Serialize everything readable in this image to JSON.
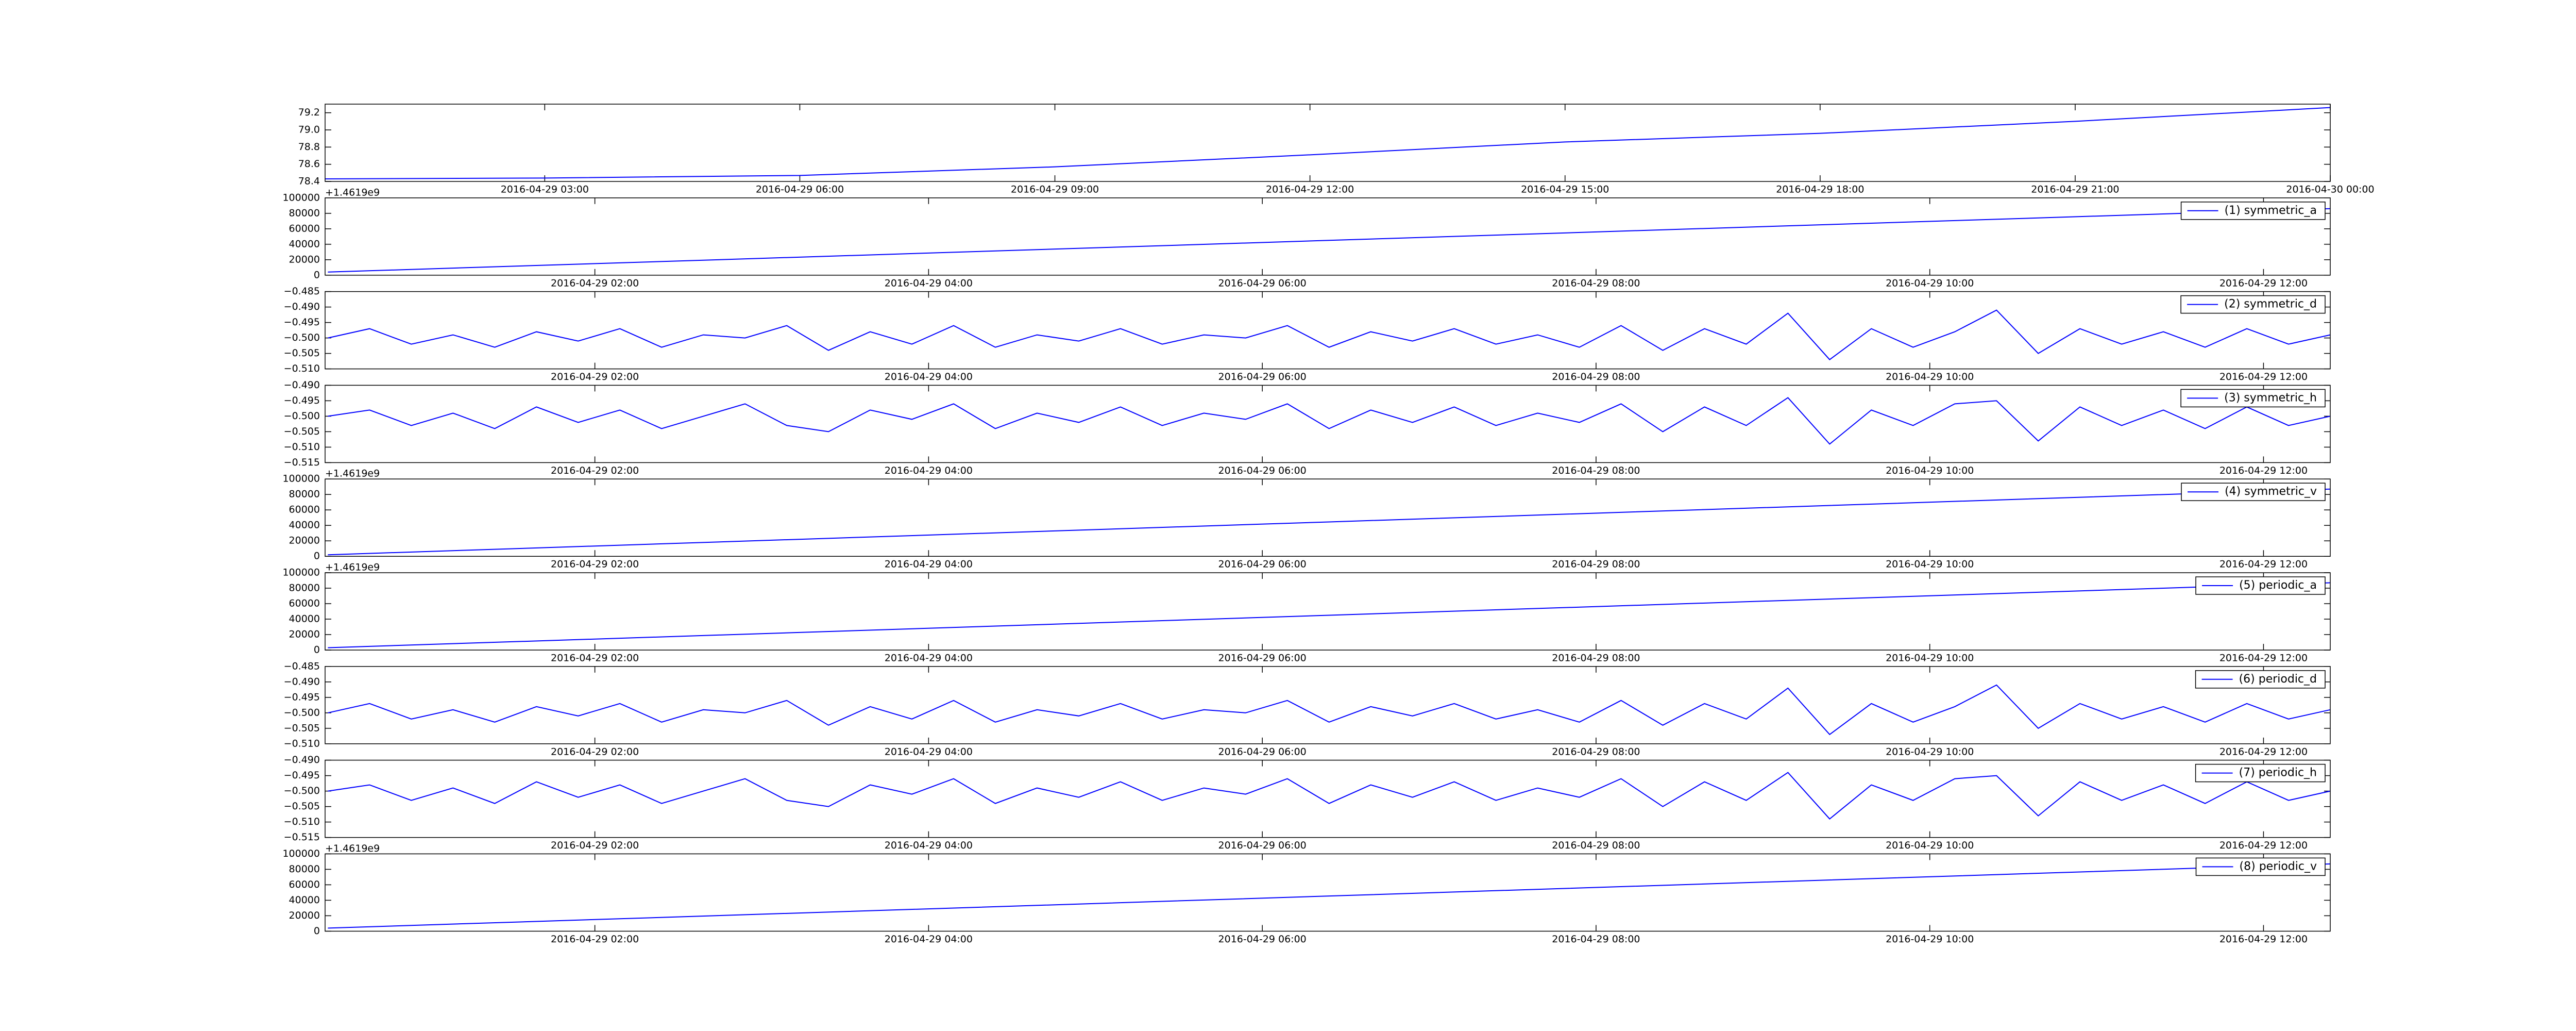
{
  "chart_data": [
    {
      "type": "line",
      "x": [
        "2016-04-29 00:25",
        "2016-04-29 03:00",
        "2016-04-29 06:00",
        "2016-04-29 09:00",
        "2016-04-29 12:00",
        "2016-04-29 15:00",
        "2016-04-29 18:00",
        "2016-04-29 21:00",
        "2016-04-30 00:00"
      ],
      "series": [
        {
          "color": "#0000ff",
          "values": [
            78.43,
            78.44,
            78.47,
            78.57,
            78.71,
            78.86,
            78.96,
            79.1,
            79.26
          ]
        }
      ],
      "xlim": [
        "2016-04-29 00:25",
        "2016-04-30 00:00"
      ],
      "xticks": [
        "2016-04-29 03:00",
        "2016-04-29 06:00",
        "2016-04-29 09:00",
        "2016-04-29 12:00",
        "2016-04-29 15:00",
        "2016-04-29 18:00",
        "2016-04-29 21:00",
        "2016-04-30 00:00"
      ],
      "ylim": [
        78.4,
        79.3
      ],
      "yticks": [
        {
          "value": 78.4,
          "label": "78.4"
        },
        {
          "value": 78.6,
          "label": "78.6"
        },
        {
          "value": 78.8,
          "label": "78.8"
        },
        {
          "value": 79.0,
          "label": "79.0"
        },
        {
          "value": 79.2,
          "label": "79.2"
        }
      ]
    },
    {
      "type": "line",
      "y_offset_label": "+1.4619e9",
      "legend": "upper right",
      "x": [
        "2016-04-29 00:24",
        "2016-04-29 06:24",
        "2016-04-29 12:24"
      ],
      "series": [
        {
          "name": "(1) symmetric_a",
          "color": "#0000ff",
          "values": [
            4000,
            45000,
            86000
          ]
        }
      ],
      "xlim": [
        "2016-04-29 00:23",
        "2016-04-29 12:24"
      ],
      "xticks": [
        "2016-04-29 02:00",
        "2016-04-29 04:00",
        "2016-04-29 06:00",
        "2016-04-29 08:00",
        "2016-04-29 10:00",
        "2016-04-29 12:00"
      ],
      "ylim": [
        0,
        100000
      ],
      "yticks": [
        0,
        20000,
        40000,
        60000,
        80000,
        100000
      ]
    },
    {
      "type": "line",
      "legend": "upper right",
      "x": [
        "2016-04-29 00:24",
        "2016-04-29 00:39",
        "2016-04-29 00:54",
        "2016-04-29 01:09",
        "2016-04-29 01:24",
        "2016-04-29 01:39",
        "2016-04-29 01:54",
        "2016-04-29 02:09",
        "2016-04-29 02:24",
        "2016-04-29 02:39",
        "2016-04-29 02:54",
        "2016-04-29 03:09",
        "2016-04-29 03:24",
        "2016-04-29 03:39",
        "2016-04-29 03:54",
        "2016-04-29 04:09",
        "2016-04-29 04:24",
        "2016-04-29 04:39",
        "2016-04-29 04:54",
        "2016-04-29 05:09",
        "2016-04-29 05:24",
        "2016-04-29 05:39",
        "2016-04-29 05:54",
        "2016-04-29 06:09",
        "2016-04-29 06:24",
        "2016-04-29 06:39",
        "2016-04-29 06:54",
        "2016-04-29 07:09",
        "2016-04-29 07:24",
        "2016-04-29 07:39",
        "2016-04-29 07:54",
        "2016-04-29 08:09",
        "2016-04-29 08:24",
        "2016-04-29 08:39",
        "2016-04-29 08:54",
        "2016-04-29 09:09",
        "2016-04-29 09:24",
        "2016-04-29 09:39",
        "2016-04-29 09:54",
        "2016-04-29 10:09",
        "2016-04-29 10:24",
        "2016-04-29 10:39",
        "2016-04-29 10:54",
        "2016-04-29 11:09",
        "2016-04-29 11:24",
        "2016-04-29 11:39",
        "2016-04-29 11:54",
        "2016-04-29 12:09",
        "2016-04-29 12:24"
      ],
      "series": [
        {
          "name": "(2) symmetric_d",
          "color": "#0000ff",
          "values": [
            -0.5,
            -0.497,
            -0.502,
            -0.499,
            -0.503,
            -0.498,
            -0.501,
            -0.497,
            -0.503,
            -0.499,
            -0.5,
            -0.496,
            -0.504,
            -0.498,
            -0.502,
            -0.496,
            -0.503,
            -0.499,
            -0.501,
            -0.497,
            -0.502,
            -0.499,
            -0.5,
            -0.496,
            -0.503,
            -0.498,
            -0.501,
            -0.497,
            -0.502,
            -0.499,
            -0.503,
            -0.496,
            -0.504,
            -0.497,
            -0.502,
            -0.492,
            -0.507,
            -0.497,
            -0.503,
            -0.498,
            -0.491,
            -0.505,
            -0.497,
            -0.502,
            -0.498,
            -0.503,
            -0.497,
            -0.502,
            -0.499
          ]
        }
      ],
      "xlim": [
        "2016-04-29 00:23",
        "2016-04-29 12:24"
      ],
      "xticks": [
        "2016-04-29 02:00",
        "2016-04-29 04:00",
        "2016-04-29 06:00",
        "2016-04-29 08:00",
        "2016-04-29 10:00",
        "2016-04-29 12:00"
      ],
      "ylim": [
        -0.51,
        -0.485
      ],
      "yticks": [
        {
          "value": -0.51,
          "label": "−0.510"
        },
        {
          "value": -0.505,
          "label": "−0.505"
        },
        {
          "value": -0.5,
          "label": "−0.500"
        },
        {
          "value": -0.495,
          "label": "−0.495"
        },
        {
          "value": -0.49,
          "label": "−0.490"
        },
        {
          "value": -0.485,
          "label": "−0.485"
        }
      ]
    },
    {
      "type": "line",
      "legend": "upper right",
      "x": [
        "2016-04-29 00:24",
        "2016-04-29 00:39",
        "2016-04-29 00:54",
        "2016-04-29 01:09",
        "2016-04-29 01:24",
        "2016-04-29 01:39",
        "2016-04-29 01:54",
        "2016-04-29 02:09",
        "2016-04-29 02:24",
        "2016-04-29 02:39",
        "2016-04-29 02:54",
        "2016-04-29 03:09",
        "2016-04-29 03:24",
        "2016-04-29 03:39",
        "2016-04-29 03:54",
        "2016-04-29 04:09",
        "2016-04-29 04:24",
        "2016-04-29 04:39",
        "2016-04-29 04:54",
        "2016-04-29 05:09",
        "2016-04-29 05:24",
        "2016-04-29 05:39",
        "2016-04-29 05:54",
        "2016-04-29 06:09",
        "2016-04-29 06:24",
        "2016-04-29 06:39",
        "2016-04-29 06:54",
        "2016-04-29 07:09",
        "2016-04-29 07:24",
        "2016-04-29 07:39",
        "2016-04-29 07:54",
        "2016-04-29 08:09",
        "2016-04-29 08:24",
        "2016-04-29 08:39",
        "2016-04-29 08:54",
        "2016-04-29 09:09",
        "2016-04-29 09:24",
        "2016-04-29 09:39",
        "2016-04-29 09:54",
        "2016-04-29 10:09",
        "2016-04-29 10:24",
        "2016-04-29 10:39",
        "2016-04-29 10:54",
        "2016-04-29 11:09",
        "2016-04-29 11:24",
        "2016-04-29 11:39",
        "2016-04-29 11:54",
        "2016-04-29 12:09",
        "2016-04-29 12:24"
      ],
      "series": [
        {
          "name": "(3) symmetric_h",
          "color": "#0000ff",
          "values": [
            -0.5,
            -0.498,
            -0.503,
            -0.499,
            -0.504,
            -0.497,
            -0.502,
            -0.498,
            -0.504,
            -0.5,
            -0.496,
            -0.503,
            -0.505,
            -0.498,
            -0.501,
            -0.496,
            -0.504,
            -0.499,
            -0.502,
            -0.497,
            -0.503,
            -0.499,
            -0.501,
            -0.496,
            -0.504,
            -0.498,
            -0.502,
            -0.497,
            -0.503,
            -0.499,
            -0.502,
            -0.496,
            -0.505,
            -0.497,
            -0.503,
            -0.494,
            -0.509,
            -0.498,
            -0.503,
            -0.496,
            -0.495,
            -0.508,
            -0.497,
            -0.503,
            -0.498,
            -0.504,
            -0.497,
            -0.503,
            -0.5
          ]
        }
      ],
      "xlim": [
        "2016-04-29 00:23",
        "2016-04-29 12:24"
      ],
      "xticks": [
        "2016-04-29 02:00",
        "2016-04-29 04:00",
        "2016-04-29 06:00",
        "2016-04-29 08:00",
        "2016-04-29 10:00",
        "2016-04-29 12:00"
      ],
      "ylim": [
        -0.515,
        -0.49
      ],
      "yticks": [
        {
          "value": -0.515,
          "label": "−0.515"
        },
        {
          "value": -0.51,
          "label": "−0.510"
        },
        {
          "value": -0.505,
          "label": "−0.505"
        },
        {
          "value": -0.5,
          "label": "−0.500"
        },
        {
          "value": -0.495,
          "label": "−0.495"
        },
        {
          "value": -0.49,
          "label": "−0.490"
        }
      ]
    },
    {
      "type": "line",
      "y_offset_label": "+1.4619e9",
      "legend": "upper right",
      "x": [
        "2016-04-29 00:24",
        "2016-04-29 06:24",
        "2016-04-29 12:24"
      ],
      "series": [
        {
          "name": "(4) symmetric_v",
          "color": "#0000ff",
          "values": [
            2000,
            44500,
            87000
          ]
        }
      ],
      "xlim": [
        "2016-04-29 00:23",
        "2016-04-29 12:24"
      ],
      "xticks": [
        "2016-04-29 02:00",
        "2016-04-29 04:00",
        "2016-04-29 06:00",
        "2016-04-29 08:00",
        "2016-04-29 10:00",
        "2016-04-29 12:00"
      ],
      "ylim": [
        0,
        100000
      ],
      "yticks": [
        0,
        20000,
        40000,
        60000,
        80000,
        100000
      ]
    },
    {
      "type": "line",
      "y_offset_label": "+1.4619e9",
      "legend": "upper right",
      "x": [
        "2016-04-29 00:24",
        "2016-04-29 06:24",
        "2016-04-29 12:24"
      ],
      "series": [
        {
          "name": "(5) periodic_a",
          "color": "#0000ff",
          "values": [
            3000,
            45000,
            87000
          ]
        }
      ],
      "xlim": [
        "2016-04-29 00:23",
        "2016-04-29 12:24"
      ],
      "xticks": [
        "2016-04-29 02:00",
        "2016-04-29 04:00",
        "2016-04-29 06:00",
        "2016-04-29 08:00",
        "2016-04-29 10:00",
        "2016-04-29 12:00"
      ],
      "ylim": [
        0,
        100000
      ],
      "yticks": [
        0,
        20000,
        40000,
        60000,
        80000,
        100000
      ]
    },
    {
      "type": "line",
      "legend": "upper right",
      "x": [
        "2016-04-29 00:24",
        "2016-04-29 00:39",
        "2016-04-29 00:54",
        "2016-04-29 01:09",
        "2016-04-29 01:24",
        "2016-04-29 01:39",
        "2016-04-29 01:54",
        "2016-04-29 02:09",
        "2016-04-29 02:24",
        "2016-04-29 02:39",
        "2016-04-29 02:54",
        "2016-04-29 03:09",
        "2016-04-29 03:24",
        "2016-04-29 03:39",
        "2016-04-29 03:54",
        "2016-04-29 04:09",
        "2016-04-29 04:24",
        "2016-04-29 04:39",
        "2016-04-29 04:54",
        "2016-04-29 05:09",
        "2016-04-29 05:24",
        "2016-04-29 05:39",
        "2016-04-29 05:54",
        "2016-04-29 06:09",
        "2016-04-29 06:24",
        "2016-04-29 06:39",
        "2016-04-29 06:54",
        "2016-04-29 07:09",
        "2016-04-29 07:24",
        "2016-04-29 07:39",
        "2016-04-29 07:54",
        "2016-04-29 08:09",
        "2016-04-29 08:24",
        "2016-04-29 08:39",
        "2016-04-29 08:54",
        "2016-04-29 09:09",
        "2016-04-29 09:24",
        "2016-04-29 09:39",
        "2016-04-29 09:54",
        "2016-04-29 10:09",
        "2016-04-29 10:24",
        "2016-04-29 10:39",
        "2016-04-29 10:54",
        "2016-04-29 11:09",
        "2016-04-29 11:24",
        "2016-04-29 11:39",
        "2016-04-29 11:54",
        "2016-04-29 12:09",
        "2016-04-29 12:24"
      ],
      "series": [
        {
          "name": "(6) periodic_d",
          "color": "#0000ff",
          "values": [
            -0.5,
            -0.497,
            -0.502,
            -0.499,
            -0.503,
            -0.498,
            -0.501,
            -0.497,
            -0.503,
            -0.499,
            -0.5,
            -0.496,
            -0.504,
            -0.498,
            -0.502,
            -0.496,
            -0.503,
            -0.499,
            -0.501,
            -0.497,
            -0.502,
            -0.499,
            -0.5,
            -0.496,
            -0.503,
            -0.498,
            -0.501,
            -0.497,
            -0.502,
            -0.499,
            -0.503,
            -0.496,
            -0.504,
            -0.497,
            -0.502,
            -0.492,
            -0.507,
            -0.497,
            -0.503,
            -0.498,
            -0.491,
            -0.505,
            -0.497,
            -0.502,
            -0.498,
            -0.503,
            -0.497,
            -0.502,
            -0.499
          ]
        }
      ],
      "xlim": [
        "2016-04-29 00:23",
        "2016-04-29 12:24"
      ],
      "xticks": [
        "2016-04-29 02:00",
        "2016-04-29 04:00",
        "2016-04-29 06:00",
        "2016-04-29 08:00",
        "2016-04-29 10:00",
        "2016-04-29 12:00"
      ],
      "ylim": [
        -0.51,
        -0.485
      ],
      "yticks": [
        {
          "value": -0.51,
          "label": "−0.510"
        },
        {
          "value": -0.505,
          "label": "−0.505"
        },
        {
          "value": -0.5,
          "label": "−0.500"
        },
        {
          "value": -0.495,
          "label": "−0.495"
        },
        {
          "value": -0.49,
          "label": "−0.490"
        },
        {
          "value": -0.485,
          "label": "−0.485"
        }
      ]
    },
    {
      "type": "line",
      "legend": "upper right",
      "x": [
        "2016-04-29 00:24",
        "2016-04-29 00:39",
        "2016-04-29 00:54",
        "2016-04-29 01:09",
        "2016-04-29 01:24",
        "2016-04-29 01:39",
        "2016-04-29 01:54",
        "2016-04-29 02:09",
        "2016-04-29 02:24",
        "2016-04-29 02:39",
        "2016-04-29 02:54",
        "2016-04-29 03:09",
        "2016-04-29 03:24",
        "2016-04-29 03:39",
        "2016-04-29 03:54",
        "2016-04-29 04:09",
        "2016-04-29 04:24",
        "2016-04-29 04:39",
        "2016-04-29 04:54",
        "2016-04-29 05:09",
        "2016-04-29 05:24",
        "2016-04-29 05:39",
        "2016-04-29 05:54",
        "2016-04-29 06:09",
        "2016-04-29 06:24",
        "2016-04-29 06:39",
        "2016-04-29 06:54",
        "2016-04-29 07:09",
        "2016-04-29 07:24",
        "2016-04-29 07:39",
        "2016-04-29 07:54",
        "2016-04-29 08:09",
        "2016-04-29 08:24",
        "2016-04-29 08:39",
        "2016-04-29 08:54",
        "2016-04-29 09:09",
        "2016-04-29 09:24",
        "2016-04-29 09:39",
        "2016-04-29 09:54",
        "2016-04-29 10:09",
        "2016-04-29 10:24",
        "2016-04-29 10:39",
        "2016-04-29 10:54",
        "2016-04-29 11:09",
        "2016-04-29 11:24",
        "2016-04-29 11:39",
        "2016-04-29 11:54",
        "2016-04-29 12:09",
        "2016-04-29 12:24"
      ],
      "series": [
        {
          "name": "(7) periodic_h",
          "color": "#0000ff",
          "values": [
            -0.5,
            -0.498,
            -0.503,
            -0.499,
            -0.504,
            -0.497,
            -0.502,
            -0.498,
            -0.504,
            -0.5,
            -0.496,
            -0.503,
            -0.505,
            -0.498,
            -0.501,
            -0.496,
            -0.504,
            -0.499,
            -0.502,
            -0.497,
            -0.503,
            -0.499,
            -0.501,
            -0.496,
            -0.504,
            -0.498,
            -0.502,
            -0.497,
            -0.503,
            -0.499,
            -0.502,
            -0.496,
            -0.505,
            -0.497,
            -0.503,
            -0.494,
            -0.509,
            -0.498,
            -0.503,
            -0.496,
            -0.495,
            -0.508,
            -0.497,
            -0.503,
            -0.498,
            -0.504,
            -0.497,
            -0.503,
            -0.5
          ]
        }
      ],
      "xlim": [
        "2016-04-29 00:23",
        "2016-04-29 12:24"
      ],
      "xticks": [
        "2016-04-29 02:00",
        "2016-04-29 04:00",
        "2016-04-29 06:00",
        "2016-04-29 08:00",
        "2016-04-29 10:00",
        "2016-04-29 12:00"
      ],
      "ylim": [
        -0.515,
        -0.49
      ],
      "yticks": [
        {
          "value": -0.515,
          "label": "−0.515"
        },
        {
          "value": -0.51,
          "label": "−0.510"
        },
        {
          "value": -0.505,
          "label": "−0.505"
        },
        {
          "value": -0.5,
          "label": "−0.500"
        },
        {
          "value": -0.495,
          "label": "−0.495"
        },
        {
          "value": -0.49,
          "label": "−0.490"
        }
      ]
    },
    {
      "type": "line",
      "y_offset_label": "+1.4619e9",
      "legend": "upper right",
      "x": [
        "2016-04-29 00:24",
        "2016-04-29 06:24",
        "2016-04-29 12:24"
      ],
      "series": [
        {
          "name": "(8) periodic_v",
          "color": "#0000ff",
          "values": [
            4000,
            45500,
            87000
          ]
        }
      ],
      "xlim": [
        "2016-04-29 00:23",
        "2016-04-29 12:24"
      ],
      "xticks": [
        "2016-04-29 02:00",
        "2016-04-29 04:00",
        "2016-04-29 06:00",
        "2016-04-29 08:00",
        "2016-04-29 10:00",
        "2016-04-29 12:00"
      ],
      "ylim": [
        0,
        100000
      ],
      "yticks": [
        0,
        20000,
        40000,
        60000,
        80000,
        100000
      ]
    }
  ]
}
